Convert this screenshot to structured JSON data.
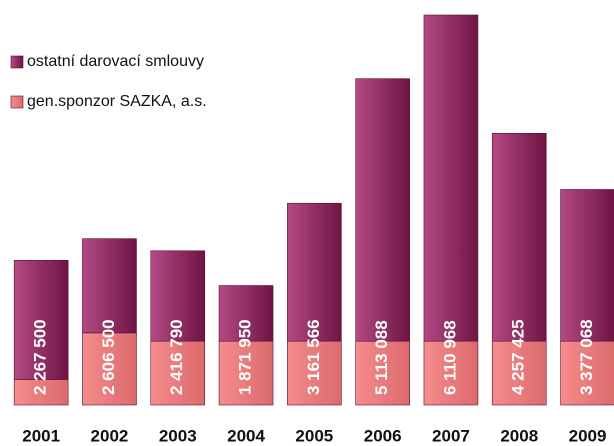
{
  "chart_data": {
    "type": "stacked_bar",
    "categories": [
      "2001",
      "2002",
      "2003",
      "2004",
      "2005",
      "2006",
      "2007",
      "2008",
      "2009"
    ],
    "series": [
      {
        "name": "gen.sponzor SAZKA, a.s.",
        "color": "#ec7b7d",
        "values": [
          400000,
          1130000,
          1000000,
          1000000,
          1000000,
          1000000,
          1000000,
          1000000,
          1000000
        ]
      },
      {
        "name": "ostatní darovací smlouvy",
        "color": "#8c2560",
        "values": [
          1867500,
          1476500,
          1416790,
          871950,
          2161566,
          4113088,
          5110968,
          3257425,
          2377068
        ]
      }
    ],
    "totals": [
      2267500,
      2606500,
      2416790,
      1871950,
      3161566,
      5113088,
      6110968,
      4257425,
      3377068
    ],
    "total_labels": [
      "2 267 500",
      "2 606 500",
      "2 416 790",
      "1 871 950",
      "3 161 566",
      "5 113 088",
      "6 110 968",
      "4 257 425",
      "3 377 068"
    ],
    "ylim": [
      0,
      6200000
    ]
  }
}
